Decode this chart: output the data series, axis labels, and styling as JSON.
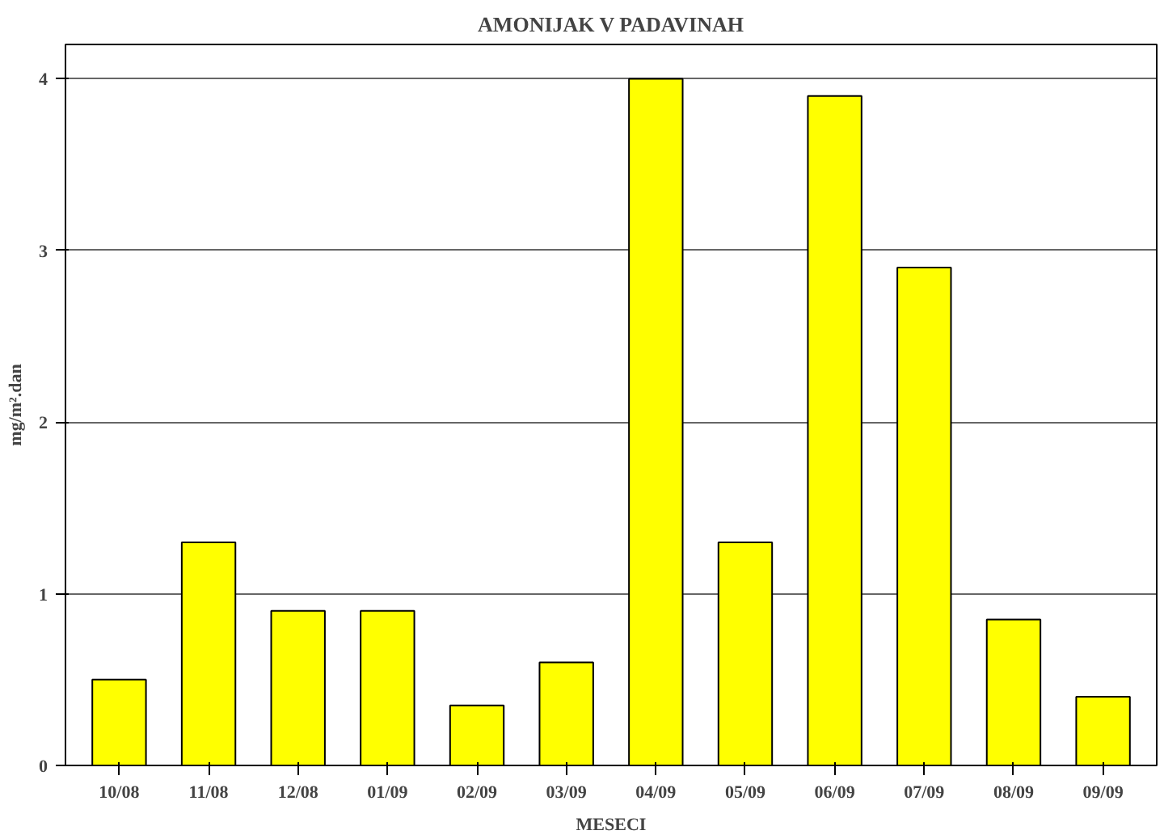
{
  "chart_data": {
    "type": "bar",
    "title": "AMONIJAK V PADAVINAH",
    "xlabel": "MESECI",
    "ylabel": "mg/m².dan",
    "categories": [
      "10/08",
      "11/08",
      "12/08",
      "01/09",
      "02/09",
      "03/09",
      "04/09",
      "05/09",
      "06/09",
      "07/09",
      "08/09",
      "09/09"
    ],
    "values": [
      0.5,
      1.3,
      0.9,
      0.9,
      0.35,
      0.6,
      4.0,
      1.3,
      3.9,
      2.9,
      0.85,
      0.4
    ],
    "color": "#ffff00",
    "ylim": [
      0,
      4.2
    ],
    "yticks": [
      0,
      1,
      2,
      3,
      4
    ],
    "grid": "y"
  }
}
